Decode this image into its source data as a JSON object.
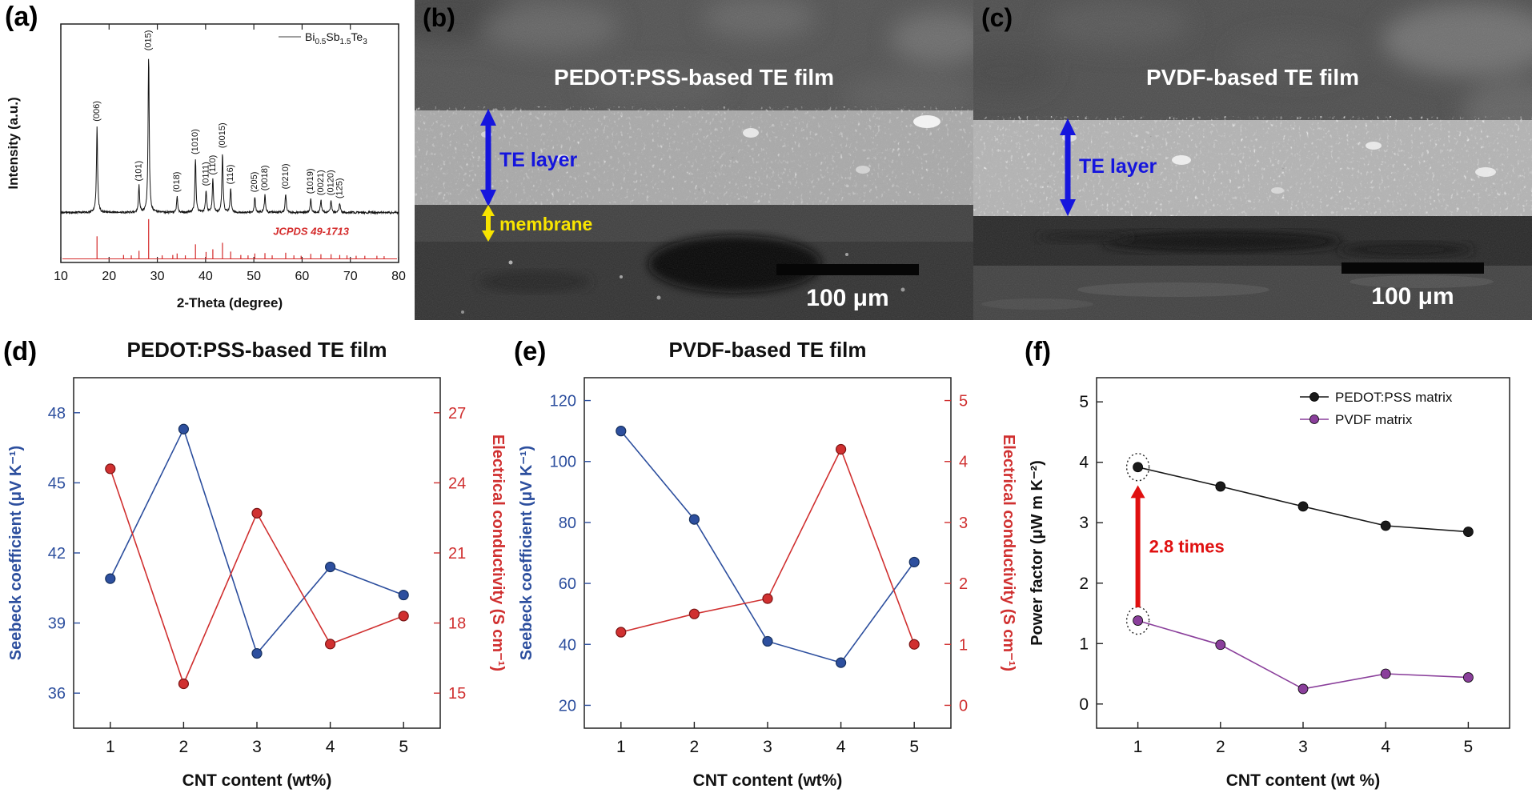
{
  "figure": {
    "background": "#ffffff"
  },
  "panels": {
    "a": {
      "letter": "(a)"
    },
    "b": {
      "letter": "(b)",
      "title": "PEDOT:PSS-based TE film",
      "te_layer_label": "TE layer",
      "membrane_label": "membrane",
      "scale_bar": "100 μm"
    },
    "c": {
      "letter": "(c)",
      "title": "PVDF-based TE film",
      "te_layer_label": "TE layer",
      "scale_bar": "100 μm"
    },
    "d": {
      "letter": "(d)"
    },
    "e": {
      "letter": "(e)"
    },
    "f": {
      "letter": "(f)"
    }
  },
  "chart_data": [
    {
      "id": "xrd",
      "renderer": "xrd",
      "type": "line",
      "legend": {
        "text": "Bi0.5Sb1.5Te3",
        "parts": [
          [
            "Bi",
            false
          ],
          [
            "0.5",
            true
          ],
          [
            "Sb",
            false
          ],
          [
            "1.5",
            true
          ],
          [
            "Te",
            false
          ],
          [
            "3",
            true
          ]
        ]
      },
      "xlabel": "2-Theta (degree)",
      "ylabel": "Intensity (a.u.)",
      "xlim": [
        10,
        80
      ],
      "xticks": [
        10,
        20,
        30,
        40,
        50,
        60,
        70,
        80
      ],
      "reference": {
        "label": "JCPDS 49-1713",
        "color": "#d42a2a"
      },
      "peaks": [
        {
          "label": "(006)",
          "two_theta": 17.5,
          "intensity": 0.55
        },
        {
          "label": "(101)",
          "two_theta": 26.2,
          "intensity": 0.17
        },
        {
          "label": "(015)",
          "two_theta": 28.2,
          "intensity": 1.0
        },
        {
          "label": "(018)",
          "two_theta": 34.1,
          "intensity": 0.1
        },
        {
          "label": "(1010)",
          "two_theta": 37.9,
          "intensity": 0.34
        },
        {
          "label": "(0111)",
          "two_theta": 40.1,
          "intensity": 0.14
        },
        {
          "label": "(110)",
          "two_theta": 41.5,
          "intensity": 0.21
        },
        {
          "label": "(0015)",
          "two_theta": 43.5,
          "intensity": 0.38
        },
        {
          "label": "(116)",
          "two_theta": 45.2,
          "intensity": 0.15
        },
        {
          "label": "(205)",
          "two_theta": 50.2,
          "intensity": 0.1
        },
        {
          "label": "(0018)",
          "two_theta": 52.3,
          "intensity": 0.11
        },
        {
          "label": "(0210)",
          "two_theta": 56.6,
          "intensity": 0.12
        },
        {
          "label": "(1019)",
          "two_theta": 61.8,
          "intensity": 0.09
        },
        {
          "label": "(0021)",
          "two_theta": 63.9,
          "intensity": 0.08
        },
        {
          "label": "(0120)",
          "two_theta": 66.0,
          "intensity": 0.08
        },
        {
          "label": "(125)",
          "two_theta": 67.8,
          "intensity": 0.06
        }
      ],
      "reference_extra_sticks": [
        [
          23.0,
          0.06
        ],
        [
          24.6,
          0.05
        ],
        [
          31.0,
          0.05
        ],
        [
          33.2,
          0.06
        ],
        [
          35.8,
          0.05
        ],
        [
          47.3,
          0.06
        ],
        [
          48.8,
          0.05
        ],
        [
          53.8,
          0.05
        ],
        [
          58.3,
          0.05
        ],
        [
          59.8,
          0.04
        ],
        [
          69.3,
          0.05
        ],
        [
          71.2,
          0.04
        ],
        [
          73.0,
          0.04
        ],
        [
          75.5,
          0.04
        ],
        [
          77.0,
          0.03
        ]
      ]
    },
    {
      "id": "pedot-dual",
      "renderer": "dual",
      "type": "dual-axis-line",
      "title": "PEDOT:PSS-based TE film",
      "xlabel": "CNT content (wt%)",
      "x": [
        1,
        2,
        3,
        4,
        5
      ],
      "xlim": [
        0.5,
        5.5
      ],
      "left": {
        "label": "Seebeck coefficient (μV K⁻¹)",
        "color": "#2d4f9e",
        "ticks": [
          36,
          39,
          42,
          45,
          48
        ],
        "range": [
          34.5,
          49.5
        ],
        "values": [
          40.9,
          47.3,
          37.7,
          41.4,
          40.2
        ]
      },
      "right": {
        "label": "Electrical conductivity (S cm⁻¹)",
        "color": "#d03030",
        "ticks": [
          15,
          18,
          21,
          24,
          27
        ],
        "range": [
          13.5,
          28.5
        ],
        "values": [
          24.6,
          15.4,
          22.7,
          17.1,
          18.3
        ]
      }
    },
    {
      "id": "pvdf-dual",
      "renderer": "dual",
      "type": "dual-axis-line",
      "title": "PVDF-based TE film",
      "xlabel": "CNT content (wt%)",
      "x": [
        1,
        2,
        3,
        4,
        5
      ],
      "xlim": [
        0.5,
        5.5
      ],
      "left": {
        "label": "Seebeck coefficient (μV K⁻¹)",
        "color": "#2d4f9e",
        "ticks": [
          20,
          40,
          60,
          80,
          100,
          120
        ],
        "range": [
          12.5,
          127.5
        ],
        "values": [
          110,
          81,
          41,
          34,
          67
        ]
      },
      "right": {
        "label": "Electrical conductivity (S cm⁻¹)",
        "color": "#d03030",
        "ticks": [
          0,
          1,
          2,
          3,
          4,
          5
        ],
        "range": [
          -0.375,
          5.375
        ],
        "values": [
          1.2,
          1.5,
          1.75,
          4.2,
          1.0
        ]
      }
    },
    {
      "id": "power-factor",
      "renderer": "multi",
      "type": "line",
      "xlabel": "CNT content (wt %)",
      "ylabel": "Power factor (μW m K⁻²)",
      "x": [
        1,
        2,
        3,
        4,
        5
      ],
      "xlim": [
        0.5,
        5.5
      ],
      "yticks": [
        0,
        1,
        2,
        3,
        4,
        5
      ],
      "ylim": [
        -0.4,
        5.4
      ],
      "legend_position": "top-right",
      "series": [
        {
          "name": "PEDOT:PSS matrix",
          "color": "#1a1a1a",
          "values": [
            3.92,
            3.6,
            3.27,
            2.95,
            2.85
          ]
        },
        {
          "name": "PVDF matrix",
          "color": "#8a3f9b",
          "values": [
            1.38,
            0.98,
            0.25,
            0.5,
            0.44
          ]
        }
      ],
      "annotation": {
        "text": "2.8 times",
        "color": "#e01010",
        "x": 1,
        "from_y": 1.6,
        "to_y": 3.62
      },
      "circled_points": [
        {
          "series": 0,
          "index": 0
        },
        {
          "series": 1,
          "index": 0
        }
      ]
    }
  ]
}
